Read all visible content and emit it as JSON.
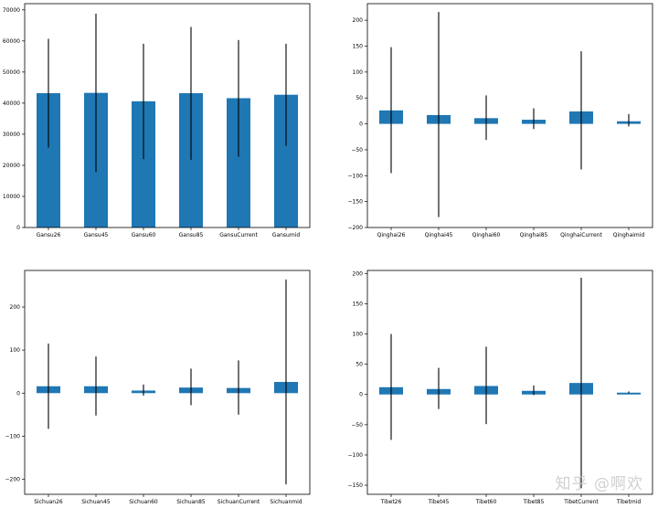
{
  "colors": {
    "bar": "#1f77b4",
    "errorbar": "#000000",
    "axes": "#000000"
  },
  "watermark": "知乎 @啊欢",
  "chart_data": [
    {
      "type": "bar",
      "categories": [
        "Gansu26",
        "Gansu45",
        "Gansu60",
        "Gansu85",
        "GansuCurrent",
        "Gansumid"
      ],
      "values": [
        43200,
        43300,
        40600,
        43200,
        41600,
        42700
      ],
      "error_low": [
        25700,
        17800,
        22000,
        21800,
        22800,
        26300
      ],
      "error_high": [
        60700,
        68800,
        59100,
        64500,
        60300,
        59100
      ],
      "ylim": [
        0,
        72000
      ],
      "yticks": [
        0,
        10000,
        20000,
        30000,
        40000,
        50000,
        60000,
        70000
      ],
      "title": "",
      "xlabel": "",
      "ylabel": "",
      "grid": false
    },
    {
      "type": "bar",
      "categories": [
        "Qinghai26",
        "Qinghai45",
        "Qinghai60",
        "Qinghai85",
        "QinghaiCurrent",
        "Qinghaimid"
      ],
      "values": [
        26,
        17,
        11,
        8,
        24,
        5
      ],
      "error_low": [
        -95,
        -180,
        -31,
        -10,
        -88,
        -5
      ],
      "error_high": [
        148,
        216,
        55,
        30,
        140,
        19
      ],
      "ylim": [
        -200,
        232
      ],
      "yticks": [
        -200,
        -150,
        -100,
        -50,
        0,
        50,
        100,
        150,
        200
      ],
      "title": "",
      "xlabel": "",
      "ylabel": "",
      "grid": false
    },
    {
      "type": "bar",
      "categories": [
        "Sichuan26",
        "Sichuan45",
        "Sichuan60",
        "Sichuan85",
        "SichuanCurrent",
        "Sichuanmid"
      ],
      "values": [
        16,
        16,
        6,
        13,
        12,
        26
      ],
      "error_low": [
        -83,
        -52,
        -6,
        -28,
        -50,
        -212
      ],
      "error_high": [
        115,
        85,
        20,
        57,
        76,
        264
      ],
      "ylim": [
        -235,
        285
      ],
      "yticks": [
        -200,
        -100,
        0,
        100,
        200
      ],
      "title": "",
      "xlabel": "",
      "ylabel": "",
      "grid": false
    },
    {
      "type": "bar",
      "categories": [
        "Tibet26",
        "Tibet45",
        "Tibet60",
        "Tibet85",
        "TibetCurrent",
        "Tibetmid"
      ],
      "values": [
        12,
        9,
        14,
        6,
        19,
        3
      ],
      "error_low": [
        -75,
        -24,
        -49,
        -1,
        -155,
        2
      ],
      "error_high": [
        100,
        44,
        79,
        15,
        193,
        5
      ],
      "ylim": [
        -165,
        205
      ],
      "yticks": [
        -150,
        -100,
        -50,
        0,
        50,
        100,
        150,
        200
      ],
      "title": "",
      "xlabel": "",
      "ylabel": "",
      "grid": false
    }
  ]
}
